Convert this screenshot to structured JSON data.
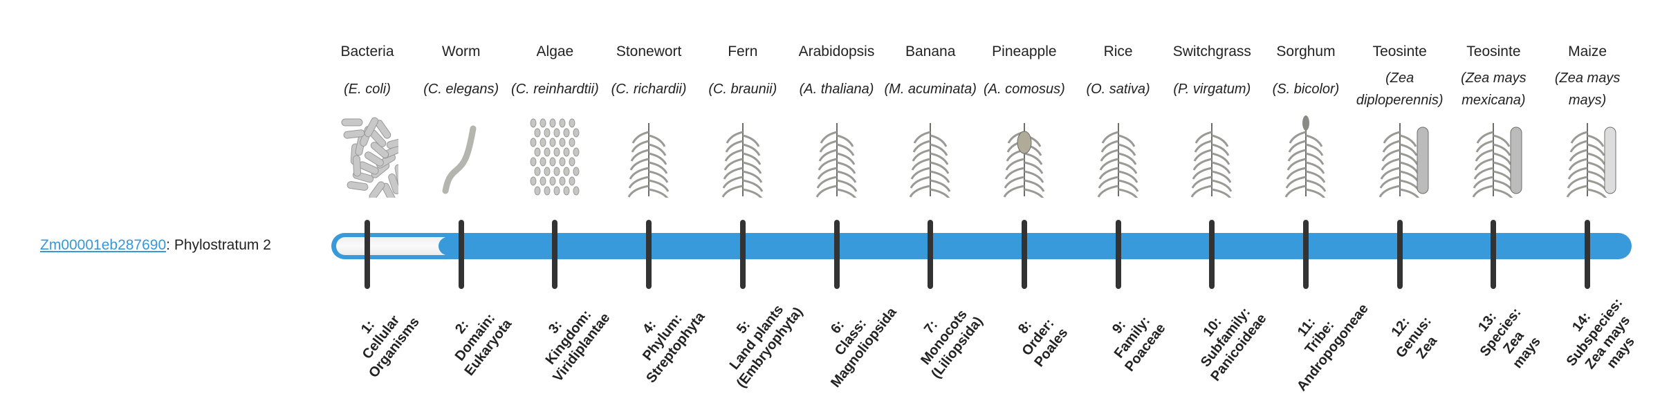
{
  "gene": {
    "id": "Zm00001eb287690",
    "separator": ": ",
    "phylostratum_text": "Phylostratum 2",
    "phylostratum": 2,
    "total_strata": 14
  },
  "colors": {
    "accent": "#3899db",
    "tick": "#333333",
    "empty": "#f5f5f5"
  },
  "organisms": [
    {
      "name": "Bacteria",
      "species": "(E. coli)",
      "icon": "bacteria-icon"
    },
    {
      "name": "Worm",
      "species": "(C. elegans)",
      "icon": "worm-icon"
    },
    {
      "name": "Algae",
      "species": "(C. reinhardtii)",
      "icon": "algae-icon"
    },
    {
      "name": "Stonewort",
      "species": "(C. richardii)",
      "icon": "stonewort-icon"
    },
    {
      "name": "Fern",
      "species": "(C. braunii)",
      "icon": "fern-icon"
    },
    {
      "name": "Arabidopsis",
      "species": "(A. thaliana)",
      "icon": "arabidopsis-icon"
    },
    {
      "name": "Banana",
      "species": "(M. acuminata)",
      "icon": "banana-icon"
    },
    {
      "name": "Pineapple",
      "species": "(A. comosus)",
      "icon": "pineapple-icon"
    },
    {
      "name": "Rice",
      "species": "(O. sativa)",
      "icon": "rice-icon"
    },
    {
      "name": "Switchgrass",
      "species": "(P. virgatum)",
      "icon": "switchgrass-icon"
    },
    {
      "name": "Sorghum",
      "species": "(S. bicolor)",
      "icon": "sorghum-icon"
    },
    {
      "name": "Teosinte",
      "species": "(Zea diploperennis)",
      "icon": "teosinte-icon"
    },
    {
      "name": "Teosinte",
      "species": "(Zea mays mexicana)",
      "icon": "teosinte-icon"
    },
    {
      "name": "Maize",
      "species": "(Zea mays mays)",
      "icon": "maize-icon"
    }
  ],
  "strata": [
    {
      "lines": [
        "1:",
        "Cellular",
        "Organisms"
      ]
    },
    {
      "lines": [
        "2:",
        "Domain:",
        "Eukaryota"
      ]
    },
    {
      "lines": [
        "3:",
        "Kingdom:",
        "Viridiplantae"
      ]
    },
    {
      "lines": [
        "4:",
        "Phylum:",
        "Streptophyta"
      ]
    },
    {
      "lines": [
        "5:",
        "Land plants",
        "(Embryophyta)"
      ]
    },
    {
      "lines": [
        "6:",
        "Class:",
        "Magnoliopsida"
      ]
    },
    {
      "lines": [
        "7:",
        "Monocots",
        "(Liliopsida)"
      ]
    },
    {
      "lines": [
        "8:",
        "Order:",
        "Poales"
      ]
    },
    {
      "lines": [
        "9:",
        "Family:",
        "Poaceae"
      ]
    },
    {
      "lines": [
        "10:",
        "Subfamily:",
        "Panicoideae"
      ]
    },
    {
      "lines": [
        "11:",
        "Tribe:",
        "Andropogoneae"
      ]
    },
    {
      "lines": [
        "12:",
        "Genus:",
        "Zea"
      ]
    },
    {
      "lines": [
        "13:",
        "Species:",
        "Zea",
        "mays"
      ]
    },
    {
      "lines": [
        "14:",
        "Subspecies:",
        "Zea mays",
        "mays"
      ]
    }
  ]
}
